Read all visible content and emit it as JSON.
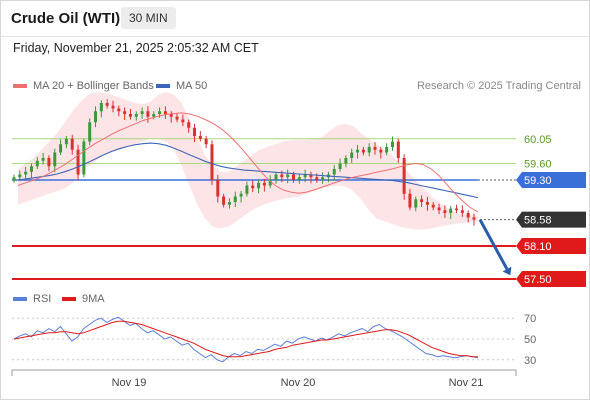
{
  "header": {
    "title": "Crude Oil (WTI)",
    "timeframe": "30 MIN"
  },
  "datetime": "Friday, November 21, 2025 2:05:32 AM CET",
  "legend": {
    "ma20_label": "MA 20 + Bollinger Bands",
    "ma50_label": "MA 50",
    "research": "Research © 2025 Trading Central",
    "rsi_label": "RSI",
    "rsi_ma_label": "9MA"
  },
  "colors": {
    "bullish": "#3a9a3a",
    "bearish": "#d93030",
    "ma20": "#f07070",
    "ma50": "#3e66b8",
    "bollinger_fill": "#fde4e6",
    "resistance_line": "#a8d87a",
    "pivot_line": "#3b6fd8",
    "support_line": "#e01a1a",
    "current_price_box": "#333333",
    "arrow": "#2a5da8",
    "rsi": "#5a7fd8",
    "rsi_ma": "#e01a1a"
  },
  "chart_data": {
    "type": "candlestick",
    "price_axis": {
      "ylim": [
        57.3,
        60.9
      ]
    },
    "x_tick_labels": [
      "Nov 19",
      "Nov 20",
      "Nov 21"
    ],
    "levels": [
      {
        "value": 60.05,
        "label": "60.05",
        "kind": "resistance"
      },
      {
        "value": 59.6,
        "label": "59.60",
        "kind": "resistance"
      },
      {
        "value": 59.3,
        "label": "59.30",
        "kind": "pivot"
      },
      {
        "value": 58.58,
        "label": "58.58",
        "kind": "current"
      },
      {
        "value": 58.1,
        "label": "58.10",
        "kind": "support"
      },
      {
        "value": 57.5,
        "label": "57.50",
        "kind": "support"
      }
    ],
    "price_path": [
      59.35,
      59.4,
      59.45,
      59.55,
      59.65,
      59.7,
      59.55,
      59.8,
      59.95,
      60.05,
      59.85,
      59.4,
      60.0,
      60.35,
      60.55,
      60.7,
      60.65,
      60.6,
      60.55,
      60.5,
      60.45,
      60.5,
      60.55,
      60.45,
      60.5,
      60.55,
      60.5,
      60.45,
      60.4,
      60.35,
      60.25,
      60.1,
      60.05,
      59.95,
      59.3,
      59.0,
      58.85,
      58.9,
      59.0,
      59.05,
      59.2,
      59.15,
      59.25,
      59.2,
      59.3,
      59.4,
      59.35,
      59.4,
      59.3,
      59.35,
      59.4,
      59.35,
      59.3,
      59.35,
      59.4,
      59.5,
      59.6,
      59.7,
      59.8,
      59.85,
      59.8,
      59.9,
      59.85,
      59.8,
      59.9,
      60.0,
      59.7,
      59.05,
      58.8,
      58.95,
      58.9,
      58.85,
      58.8,
      58.75,
      58.7,
      58.78,
      58.75,
      58.7,
      58.62,
      58.58
    ],
    "ma20": [
      59.2,
      59.25,
      59.3,
      59.35,
      59.42,
      59.5,
      59.58,
      59.68,
      59.78,
      59.88,
      59.97,
      60.05,
      60.13,
      60.2,
      60.26,
      60.32,
      60.38,
      60.42,
      60.46,
      60.49,
      60.51,
      60.52,
      60.5,
      60.46,
      60.4,
      60.33,
      60.24,
      60.12,
      59.98,
      59.82,
      59.65,
      59.48,
      59.32,
      59.2,
      59.12,
      59.08,
      59.06,
      59.08,
      59.12,
      59.17,
      59.22,
      59.27,
      59.31,
      59.35,
      59.38,
      59.41,
      59.44,
      59.47,
      59.5,
      59.54,
      59.58,
      59.6,
      59.58,
      59.5,
      59.38,
      59.22,
      59.06,
      58.92,
      58.8,
      58.72
    ],
    "bb_upper": [
      59.5,
      59.6,
      59.7,
      59.85,
      60.0,
      60.15,
      60.35,
      60.55,
      60.72,
      60.85,
      60.9,
      60.88,
      60.85,
      60.8,
      60.75,
      60.7,
      60.68,
      60.72,
      60.85,
      60.9,
      60.85,
      60.7,
      60.4,
      60.05,
      59.75,
      59.55,
      59.45,
      59.45,
      59.55,
      59.65,
      59.75,
      59.85,
      59.9,
      59.95,
      60.0,
      60.02,
      60.03,
      60.03,
      60.05,
      60.08,
      60.2,
      60.3,
      60.32,
      60.28,
      60.15,
      60.05,
      59.95,
      59.85,
      59.75,
      59.6,
      59.45,
      59.3,
      59.15,
      59.0,
      58.9,
      58.8,
      58.72,
      58.68,
      58.66,
      58.65
    ],
    "bb_lower": [
      58.85,
      58.9,
      58.95,
      59.0,
      59.05,
      59.1,
      59.15,
      59.25,
      59.4,
      59.55,
      59.65,
      59.75,
      59.8,
      59.85,
      59.9,
      59.95,
      60.0,
      60.05,
      60.05,
      60.0,
      59.85,
      59.55,
      59.2,
      58.85,
      58.6,
      58.45,
      58.42,
      58.45,
      58.55,
      58.65,
      58.75,
      58.82,
      58.88,
      58.92,
      58.95,
      58.98,
      59.0,
      59.05,
      59.1,
      59.15,
      59.18,
      59.2,
      59.18,
      59.1,
      58.95,
      58.75,
      58.6,
      58.55,
      58.5,
      58.45,
      58.42,
      58.4,
      58.4,
      58.42,
      58.45,
      58.48,
      58.5,
      58.52,
      58.53,
      58.54
    ],
    "ma50": [
      59.3,
      59.32,
      59.34,
      59.36,
      59.38,
      59.41,
      59.45,
      59.5,
      59.56,
      59.62,
      59.69,
      59.76,
      59.82,
      59.87,
      59.91,
      59.94,
      59.96,
      59.97,
      59.96,
      59.93,
      59.88,
      59.82,
      59.76,
      59.7,
      59.64,
      59.59,
      59.55,
      59.52,
      59.5,
      59.48,
      59.47,
      59.46,
      59.45,
      59.44,
      59.43,
      59.42,
      59.41,
      59.4,
      59.39,
      59.38,
      59.37,
      59.36,
      59.35,
      59.34,
      59.33,
      59.32,
      59.31,
      59.3,
      59.29,
      59.27,
      59.25,
      59.22,
      59.19,
      59.16,
      59.13,
      59.1,
      59.07,
      59.04,
      59.01,
      58.98
    ],
    "rsi_axis": {
      "ylim": [
        24,
        76
      ],
      "ticks": [
        70,
        50,
        30
      ]
    },
    "rsi": [
      50,
      53,
      55,
      52,
      58,
      56,
      60,
      57,
      62,
      55,
      48,
      52,
      60,
      64,
      68,
      70,
      66,
      69,
      71,
      67,
      63,
      65,
      60,
      56,
      58,
      54,
      50,
      52,
      48,
      44,
      46,
      40,
      36,
      32,
      35,
      30,
      28,
      33,
      36,
      34,
      38,
      36,
      40,
      39,
      42,
      45,
      43,
      48,
      46,
      50,
      52,
      50,
      48,
      51,
      49,
      52,
      55,
      53,
      56,
      58,
      60,
      57,
      62,
      64,
      60,
      58,
      55,
      52,
      48,
      44,
      40,
      36,
      35,
      33,
      34,
      33,
      32,
      33,
      34,
      33,
      32
    ],
    "rsi_ma": [
      50,
      51,
      52,
      53,
      54,
      55,
      56,
      56,
      57,
      57,
      56,
      55,
      56,
      58,
      60,
      62,
      64,
      66,
      67,
      67,
      66,
      65,
      64,
      62,
      60,
      58,
      56,
      54,
      52,
      50,
      48,
      46,
      43,
      40,
      38,
      36,
      34,
      33,
      33,
      33,
      34,
      35,
      36,
      37,
      38,
      40,
      41,
      42,
      44,
      45,
      46,
      47,
      48,
      49,
      49,
      50,
      51,
      52,
      53,
      54,
      55,
      56,
      57,
      58,
      59,
      59,
      58,
      56,
      54,
      51,
      48,
      45,
      42,
      40,
      38,
      36,
      35,
      34,
      34,
      33,
      33
    ]
  }
}
